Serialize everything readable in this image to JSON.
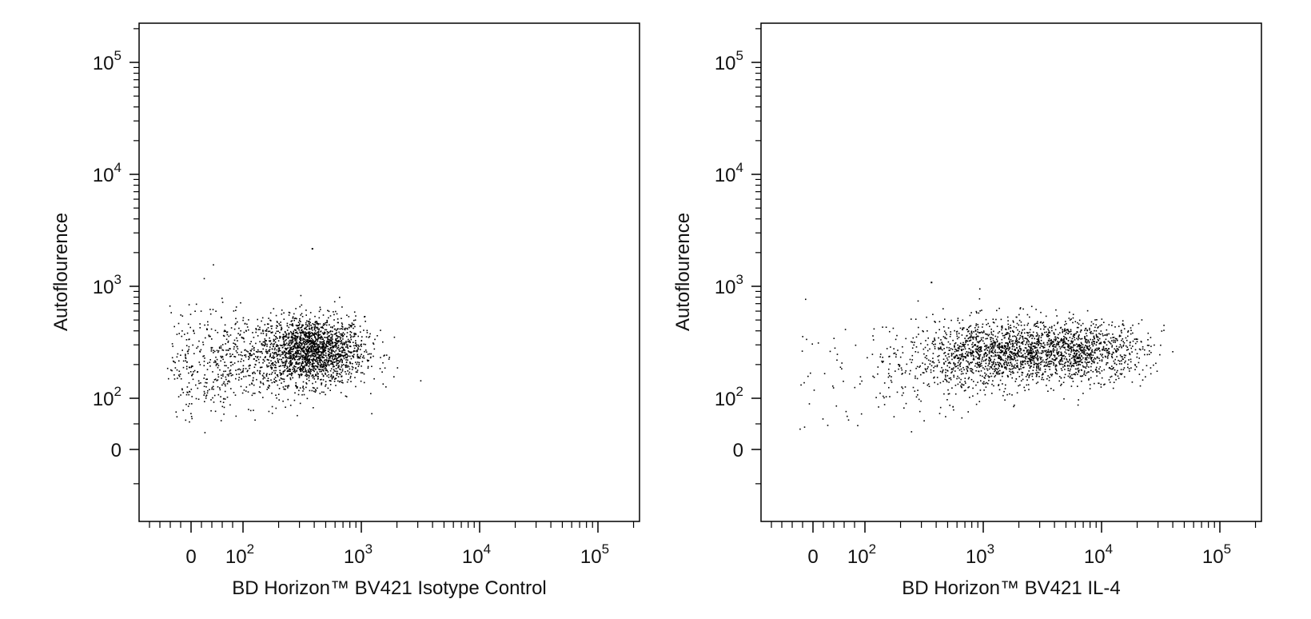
{
  "chart_data": [
    {
      "type": "scatter",
      "title": "",
      "xlabel": "BD Horizon™ BV421 Isotype Control",
      "ylabel": "Autoflourence",
      "x_scale": "biexponential",
      "y_scale": "biexponential",
      "xlim": [
        -250,
        260000
      ],
      "ylim": [
        -70,
        260000
      ],
      "x_tick_labels": [
        {
          "value": 0,
          "base": "0",
          "exp": ""
        },
        {
          "value": 100,
          "base": "10",
          "exp": "2"
        },
        {
          "value": 1000,
          "base": "10",
          "exp": "3"
        },
        {
          "value": 10000,
          "base": "10",
          "exp": "4"
        },
        {
          "value": 100000,
          "base": "10",
          "exp": "5"
        }
      ],
      "y_tick_labels": [
        {
          "value": 0,
          "base": "0",
          "exp": ""
        },
        {
          "value": 100,
          "base": "10",
          "exp": "2"
        },
        {
          "value": 1000,
          "base": "10",
          "exp": "3"
        },
        {
          "value": 10000,
          "base": "10",
          "exp": "4"
        },
        {
          "value": 100000,
          "base": "10",
          "exp": "5"
        }
      ],
      "grid": false,
      "point_color": "#000000",
      "populations": [
        {
          "x_center": 380,
          "x_spread_log": 0.22,
          "y_center": 270,
          "y_spread_log": 0.15,
          "count": 1800
        },
        {
          "x_center": 150,
          "x_spread_log": 0.4,
          "y_center": 230,
          "y_spread_log": 0.2,
          "count": 450
        },
        {
          "x_center": 20,
          "x_spread_linear": 60,
          "y_center": 200,
          "y_spread_log": 0.25,
          "count": 250
        }
      ],
      "notable_points": [
        {
          "x": 380,
          "y": 2200
        }
      ]
    },
    {
      "type": "scatter",
      "title": "",
      "xlabel": "BD Horizon™ BV421 IL-4",
      "ylabel": "Autoflourence",
      "x_scale": "biexponential",
      "y_scale": "biexponential",
      "xlim": [
        -250,
        260000
      ],
      "ylim": [
        -70,
        260000
      ],
      "x_tick_labels": [
        {
          "value": 0,
          "base": "0",
          "exp": ""
        },
        {
          "value": 100,
          "base": "10",
          "exp": "2"
        },
        {
          "value": 1000,
          "base": "10",
          "exp": "3"
        },
        {
          "value": 10000,
          "base": "10",
          "exp": "4"
        },
        {
          "value": 100000,
          "base": "10",
          "exp": "5"
        }
      ],
      "y_tick_labels": [
        {
          "value": 0,
          "base": "0",
          "exp": ""
        },
        {
          "value": 100,
          "base": "10",
          "exp": "2"
        },
        {
          "value": 1000,
          "base": "10",
          "exp": "3"
        },
        {
          "value": 10000,
          "base": "10",
          "exp": "4"
        },
        {
          "value": 100000,
          "base": "10",
          "exp": "5"
        }
      ],
      "grid": false,
      "point_color": "#000000",
      "populations": [
        {
          "x_center": 1200,
          "x_spread_log": 0.28,
          "y_center": 250,
          "y_spread_log": 0.15,
          "count": 1100
        },
        {
          "x_center": 6000,
          "x_spread_log": 0.3,
          "y_center": 270,
          "y_spread_log": 0.13,
          "count": 1100
        },
        {
          "x_center": 350,
          "x_spread_log": 0.35,
          "y_center": 180,
          "y_spread_log": 0.22,
          "count": 220
        },
        {
          "x_center": 30,
          "x_spread_linear": 90,
          "y_center": 150,
          "y_spread_log": 0.3,
          "count": 40
        }
      ],
      "notable_points": [
        {
          "x": 360,
          "y": 1100
        }
      ]
    }
  ]
}
